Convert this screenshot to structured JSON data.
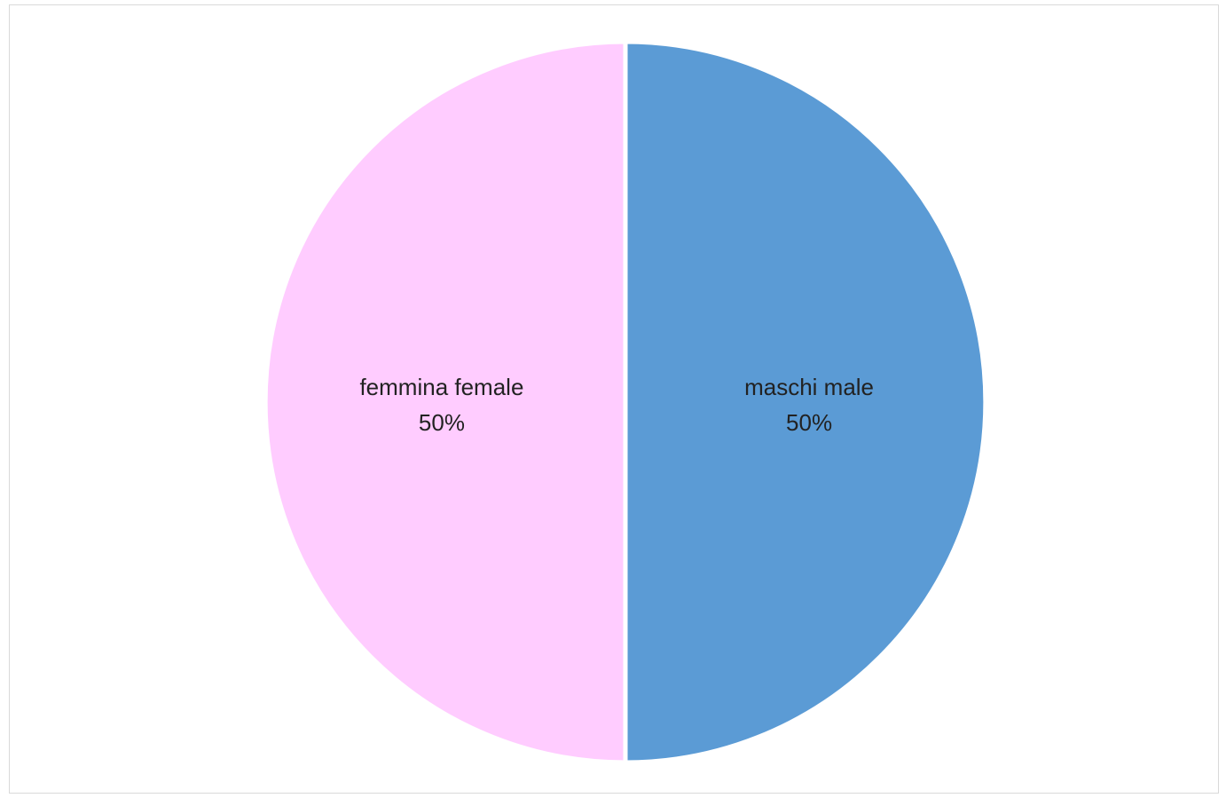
{
  "chart_data": {
    "type": "pie",
    "slices": [
      {
        "name": "maschi male",
        "value": 50,
        "label": "50%",
        "color": "#5b9bd5"
      },
      {
        "name": "femmina female",
        "value": 50,
        "label": "50%",
        "color": "#ffccff"
      }
    ],
    "start_angle": "12 o'clock",
    "direction": "clockwise",
    "legend": "none",
    "title": ""
  }
}
